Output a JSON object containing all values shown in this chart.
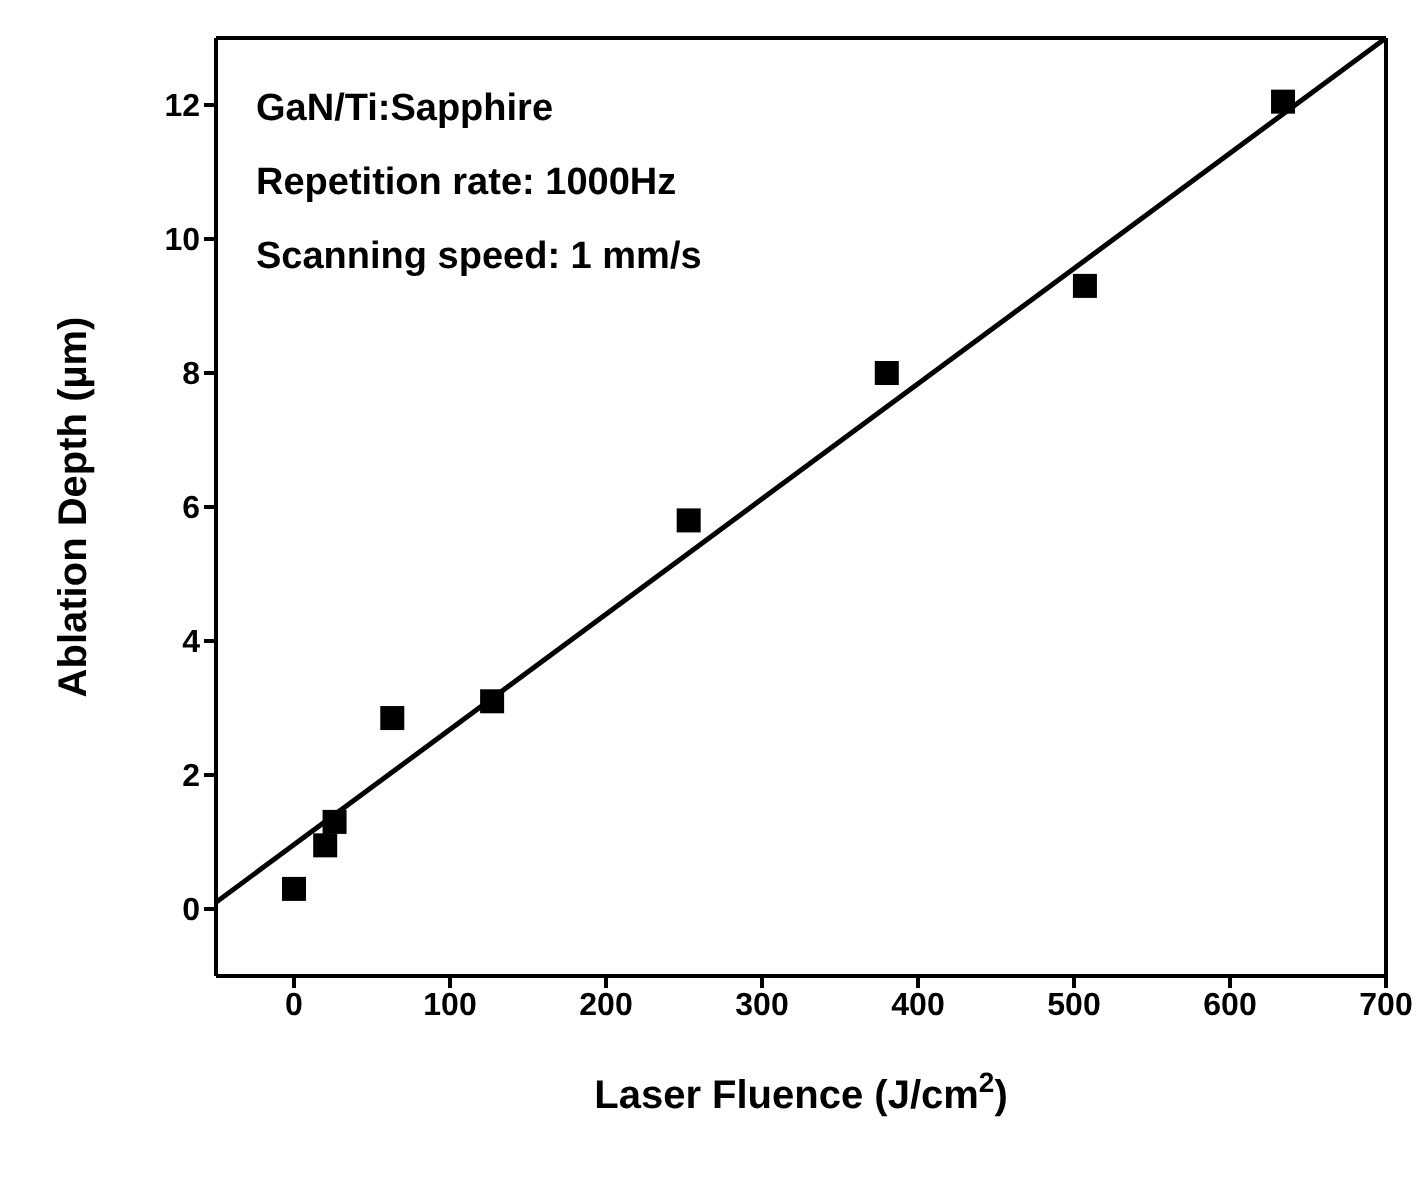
{
  "chart_data": {
    "type": "scatter",
    "xlabel": "Laser Fluence (J/cm$^{2}$)",
    "ylabel": "Ablation Depth (µm)",
    "annotations": [
      "GaN/Ti:Sapphire",
      "Repetition rate: 1000Hz",
      "Scanning speed: 1 mm/s"
    ],
    "xlim": [
      -50,
      700
    ],
    "ylim": [
      -1,
      13
    ],
    "xticks": [
      0,
      100,
      200,
      300,
      400,
      500,
      600,
      700
    ],
    "yticks": [
      0,
      2,
      4,
      6,
      8,
      10,
      12
    ],
    "marker": "square",
    "series": [
      {
        "color": "#000000",
        "x": [
          0,
          20,
          26,
          63,
          127,
          253,
          380,
          507,
          634
        ],
        "values": [
          0.3,
          0.95,
          1.3,
          2.85,
          3.1,
          5.8,
          8.0,
          9.3,
          12.05
        ]
      },
      {
        "type": "line",
        "color": "#000000",
        "marker": "none",
        "line_style": "solid",
        "x": [
          -50,
          700
        ],
        "values": [
          0.1,
          13
        ]
      }
    ]
  }
}
